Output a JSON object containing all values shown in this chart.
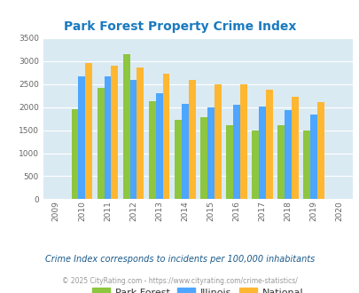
{
  "title": "Park Forest Property Crime Index",
  "data_years": [
    2010,
    2011,
    2012,
    2013,
    2014,
    2015,
    2016,
    2017,
    2018,
    2019
  ],
  "park_forest": [
    1960,
    2420,
    3160,
    2120,
    1720,
    1780,
    1600,
    1500,
    1600,
    1500
  ],
  "illinois": [
    2670,
    2670,
    2590,
    2300,
    2080,
    1990,
    2060,
    2020,
    1940,
    1840
  ],
  "national": [
    2960,
    2900,
    2870,
    2730,
    2600,
    2500,
    2490,
    2380,
    2220,
    2110
  ],
  "park_forest_color": "#8dc63f",
  "illinois_color": "#4da6ff",
  "national_color": "#ffb732",
  "bg_color": "#daeaf3",
  "ylim": [
    0,
    3500
  ],
  "yticks": [
    0,
    500,
    1000,
    1500,
    2000,
    2500,
    3000,
    3500
  ],
  "xtick_years": [
    2009,
    2010,
    2011,
    2012,
    2013,
    2014,
    2015,
    2016,
    2017,
    2018,
    2019,
    2020
  ],
  "legend_labels": [
    "Park Forest",
    "Illinois",
    "National"
  ],
  "note": "Crime Index corresponds to incidents per 100,000 inhabitants",
  "copyright": "© 2025 CityRating.com - https://www.cityrating.com/crime-statistics/",
  "title_color": "#1a7abf",
  "note_color": "#1a5a8a",
  "copyright_color": "#999999",
  "bar_width": 0.27
}
